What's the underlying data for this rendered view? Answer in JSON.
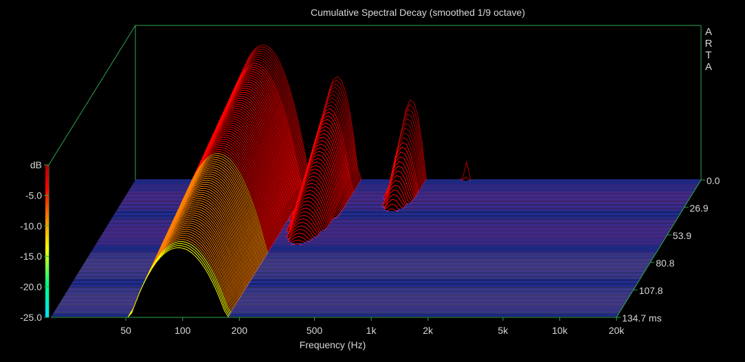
{
  "chart_data": {
    "type": "waterfall",
    "title": "Cumulative Spectral Decay (smoothed 1/9 octave)",
    "brand": "ARTA",
    "xlabel": "Frequency (Hz)",
    "ylabel": "dB",
    "xscale": "log",
    "xlim": [
      20,
      20000
    ],
    "x_ticks": [
      {
        "value": 50,
        "label": "50"
      },
      {
        "value": 100,
        "label": "100"
      },
      {
        "value": 200,
        "label": "200"
      },
      {
        "value": 500,
        "label": "500"
      },
      {
        "value": 1000,
        "label": "1k"
      },
      {
        "value": 2000,
        "label": "2k"
      },
      {
        "value": 5000,
        "label": "5k"
      },
      {
        "value": 10000,
        "label": "10k"
      },
      {
        "value": 20000,
        "label": "20k"
      }
    ],
    "ylim": [
      -25,
      0
    ],
    "y_ticks": [
      {
        "value": 0,
        "label": "dB"
      },
      {
        "value": -5,
        "label": "-5.0"
      },
      {
        "value": -10,
        "label": "-10.0"
      },
      {
        "value": -15,
        "label": "-15.0"
      },
      {
        "value": -20,
        "label": "-20.0"
      },
      {
        "value": -25,
        "label": "-25.0"
      }
    ],
    "time_unit": "ms",
    "time_range": [
      0,
      134.7
    ],
    "time_ticks": [
      {
        "value": 0,
        "label": "0.0"
      },
      {
        "value": 26.9,
        "label": "26.9"
      },
      {
        "value": 53.9,
        "label": "53.9"
      },
      {
        "value": 80.8,
        "label": "80.8"
      },
      {
        "value": 107.8,
        "label": "107.8"
      },
      {
        "value": 134.7,
        "label": "134.7 ms"
      }
    ],
    "slice_count": 100,
    "colormap": [
      "#00e0ff",
      "#00ff80",
      "#ffff00",
      "#ff8000",
      "#ff0000",
      "#b00000"
    ],
    "baseline_color": "#3c50ff",
    "axis_color": "#2fa84f",
    "resonances": [
      {
        "freq_hz": 95,
        "start_level_db": -1.5,
        "decay_ms": 140
      },
      {
        "freq_hz": 235,
        "start_level_db": -7,
        "decay_ms": 35
      },
      {
        "freq_hz": 580,
        "start_level_db": -11,
        "decay_ms": 22
      },
      {
        "freq_hz": 1130,
        "start_level_db": -21.5,
        "decay_ms": 5
      }
    ]
  }
}
